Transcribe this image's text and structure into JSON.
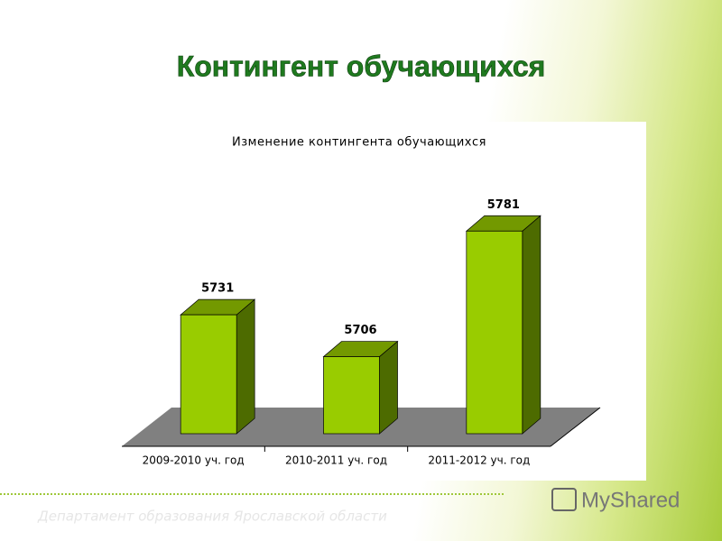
{
  "slide_title": "Контингент обучающихся",
  "footer": "Департамент образования Ярославской области",
  "watermark": "MyShared",
  "chart_data": {
    "type": "bar3d",
    "title": "Изменение контингента обучающихся",
    "categories": [
      "2009-2010 уч. год",
      "2010-2011 уч. год",
      "2011-2012 уч. год"
    ],
    "values": [
      5731,
      5706,
      5781
    ],
    "color": "#99cc00",
    "ylim": [
      5660,
      5800
    ]
  }
}
